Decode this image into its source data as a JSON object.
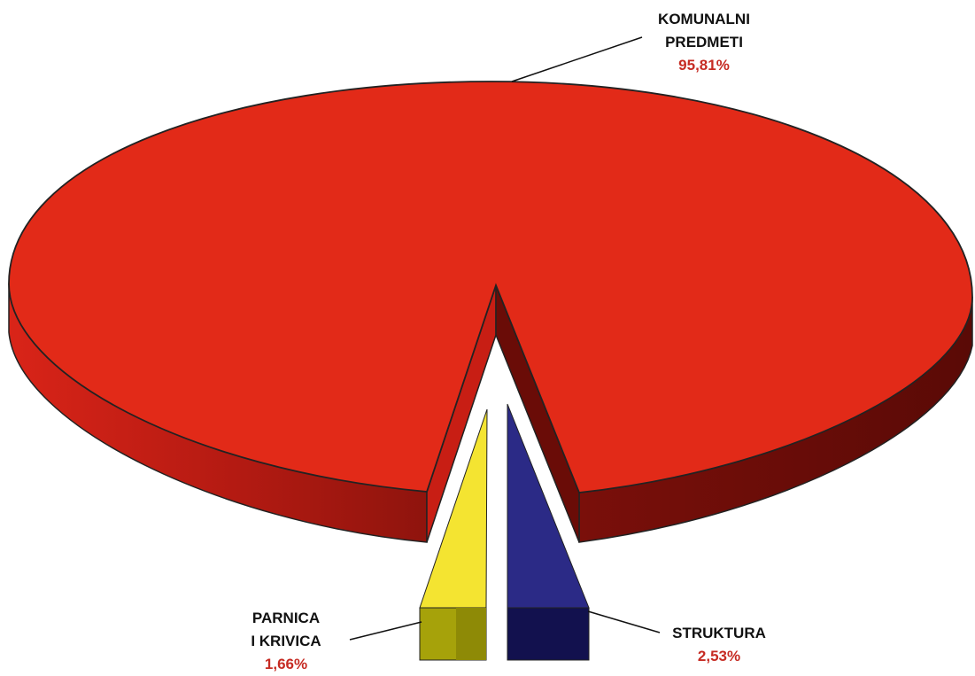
{
  "chart_data": {
    "type": "pie",
    "style": "3d-exploded",
    "slices": [
      {
        "label_lines": [
          "KOMUNALNI",
          "PREDMETI"
        ],
        "percent_label": "95,81%",
        "value": 95.81,
        "color": "#e22a18"
      },
      {
        "label_lines": [
          "PARNICA",
          "I KRIVICA"
        ],
        "percent_label": "1,66%",
        "value": 1.66,
        "color": "#f4e431"
      },
      {
        "label_lines": [
          "STRUKTURA"
        ],
        "percent_label": "2,53%",
        "value": 2.53,
        "color": "#2b2a86"
      }
    ],
    "percent_color": "#c62b23"
  }
}
